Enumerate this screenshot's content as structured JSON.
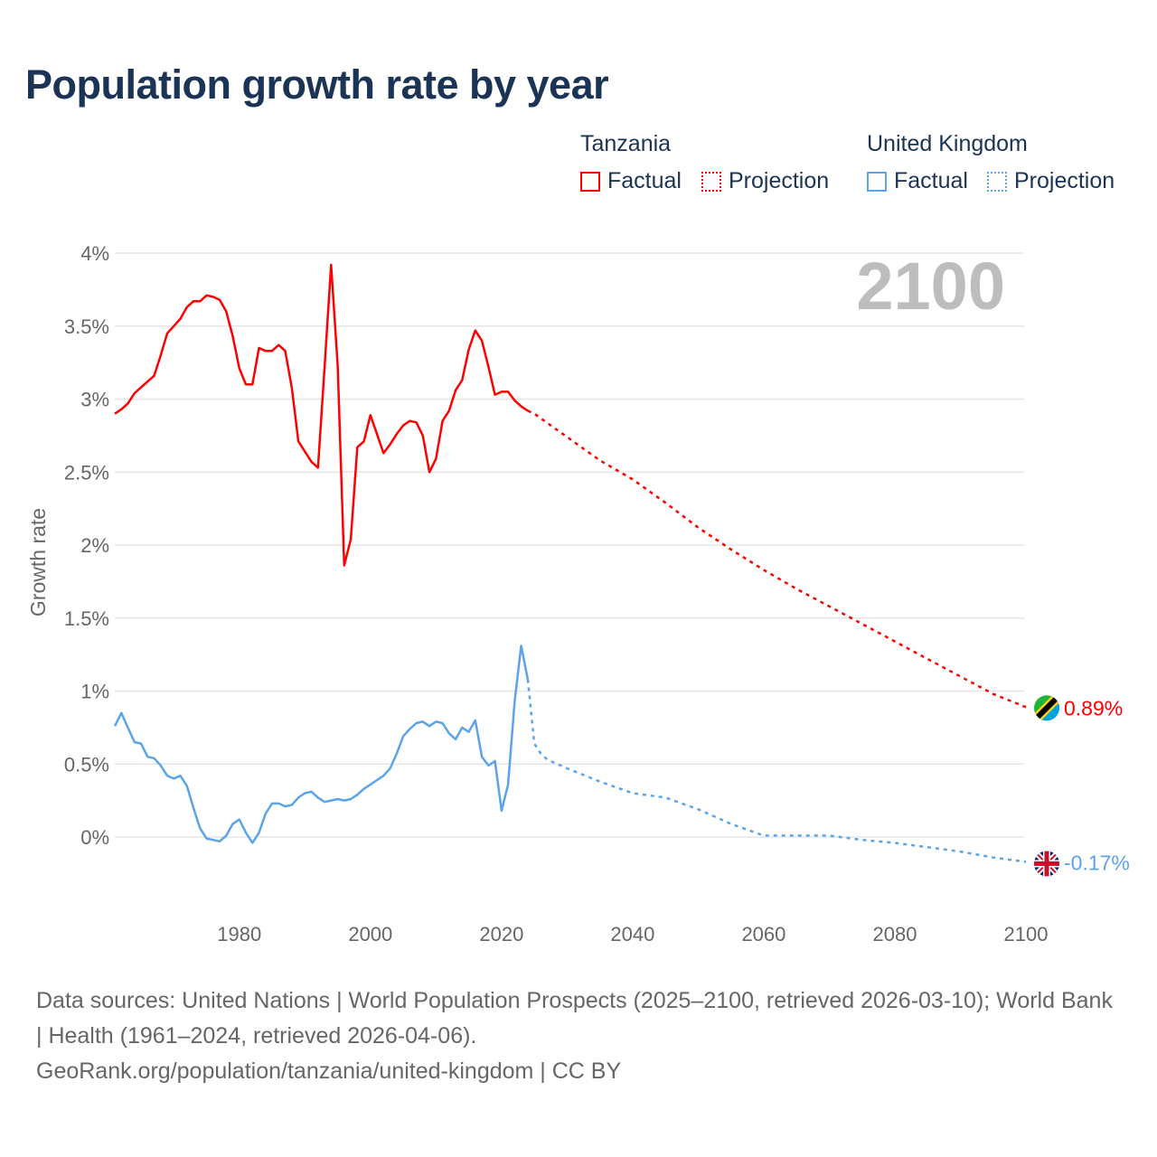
{
  "title": "Population growth rate by year",
  "legend": {
    "groups": [
      {
        "name": "Tanzania",
        "factual": "Factual",
        "projection": "Projection",
        "color": "#ff0000"
      },
      {
        "name": "United Kingdom",
        "factual": "Factual",
        "projection": "Projection",
        "color": "#5ba4e8"
      }
    ]
  },
  "year_watermark": "2100",
  "footer": {
    "sources": "Data sources: United Nations | World Population Prospects (2025–2100, retrieved 2026-03-10); World Bank | Health (1961–2024, retrieved 2026-04-06).",
    "link": "GeoRank.org/population/tanzania/united-kingdom | CC BY"
  },
  "chart_data": {
    "type": "line",
    "title": "Population growth rate by year",
    "xlabel": "",
    "ylabel": "Growth rate",
    "xlim": [
      1961,
      2100
    ],
    "ylim": [
      -0.3,
      4.0
    ],
    "x_ticks": [
      1980,
      2000,
      2020,
      2040,
      2060,
      2080,
      2100
    ],
    "x_tick_labels": [
      "1980",
      "2000",
      "2020",
      "2040",
      "2060",
      "2080",
      "2100"
    ],
    "y_ticks": [
      0,
      0.5,
      1,
      1.5,
      2,
      2.5,
      3,
      3.5,
      4
    ],
    "y_tick_labels": [
      "0%",
      "0.5%",
      "1%",
      "1.5%",
      "2%",
      "2.5%",
      "3%",
      "3.5%",
      "4%"
    ],
    "grid": true,
    "legend_position": "top-right",
    "series": [
      {
        "name": "Tanzania Factual",
        "color": "#ff0000",
        "dashed": false,
        "x": [
          1961,
          1962,
          1963,
          1964,
          1965,
          1966,
          1967,
          1968,
          1969,
          1970,
          1971,
          1972,
          1973,
          1974,
          1975,
          1976,
          1977,
          1978,
          1979,
          1980,
          1981,
          1982,
          1983,
          1984,
          1985,
          1986,
          1987,
          1988,
          1989,
          1990,
          1991,
          1992,
          1993,
          1994,
          1995,
          1996,
          1997,
          1998,
          1999,
          2000,
          2001,
          2002,
          2003,
          2004,
          2005,
          2006,
          2007,
          2008,
          2009,
          2010,
          2011,
          2012,
          2013,
          2014,
          2015,
          2016,
          2017,
          2018,
          2019,
          2020,
          2021,
          2022,
          2023,
          2024
        ],
        "values": [
          2.9,
          2.93,
          2.97,
          3.04,
          3.08,
          3.12,
          3.16,
          3.3,
          3.45,
          3.5,
          3.55,
          3.63,
          3.67,
          3.67,
          3.71,
          3.7,
          3.68,
          3.6,
          3.43,
          3.21,
          3.1,
          3.1,
          3.35,
          3.33,
          3.33,
          3.37,
          3.33,
          3.08,
          2.71,
          2.64,
          2.57,
          2.53,
          3.22,
          3.92,
          3.23,
          1.86,
          2.04,
          2.67,
          2.71,
          2.89,
          2.76,
          2.63,
          2.69,
          2.76,
          2.82,
          2.85,
          2.84,
          2.75,
          2.5,
          2.59,
          2.85,
          2.92,
          3.06,
          3.13,
          3.34,
          3.47,
          3.4,
          3.22,
          3.03,
          3.05,
          3.05,
          2.99,
          2.95,
          2.92
        ]
      },
      {
        "name": "Tanzania Projection",
        "color": "#ff0000",
        "dashed": true,
        "x": [
          2024,
          2025,
          2030,
          2035,
          2040,
          2045,
          2050,
          2055,
          2060,
          2065,
          2070,
          2075,
          2080,
          2085,
          2090,
          2095,
          2100
        ],
        "values": [
          2.92,
          2.9,
          2.74,
          2.58,
          2.45,
          2.29,
          2.12,
          1.97,
          1.83,
          1.7,
          1.58,
          1.46,
          1.34,
          1.22,
          1.1,
          0.98,
          0.89
        ]
      },
      {
        "name": "United Kingdom Factual",
        "color": "#5ba4e8",
        "dashed": false,
        "x": [
          1961,
          1962,
          1963,
          1964,
          1965,
          1966,
          1967,
          1968,
          1969,
          1970,
          1971,
          1972,
          1973,
          1974,
          1975,
          1976,
          1977,
          1978,
          1979,
          1980,
          1981,
          1982,
          1983,
          1984,
          1985,
          1986,
          1987,
          1988,
          1989,
          1990,
          1991,
          1992,
          1993,
          1994,
          1995,
          1996,
          1997,
          1998,
          1999,
          2000,
          2001,
          2002,
          2003,
          2004,
          2005,
          2006,
          2007,
          2008,
          2009,
          2010,
          2011,
          2012,
          2013,
          2014,
          2015,
          2016,
          2017,
          2018,
          2019,
          2020,
          2021,
          2022,
          2023,
          2024
        ],
        "values": [
          0.76,
          0.85,
          0.75,
          0.65,
          0.64,
          0.55,
          0.54,
          0.49,
          0.42,
          0.4,
          0.42,
          0.35,
          0.2,
          0.06,
          -0.01,
          -0.02,
          -0.03,
          0.01,
          0.09,
          0.12,
          0.03,
          -0.04,
          0.03,
          0.16,
          0.23,
          0.23,
          0.21,
          0.22,
          0.27,
          0.3,
          0.31,
          0.27,
          0.24,
          0.25,
          0.26,
          0.25,
          0.26,
          0.29,
          0.33,
          0.36,
          0.39,
          0.42,
          0.47,
          0.57,
          0.69,
          0.74,
          0.78,
          0.79,
          0.76,
          0.79,
          0.78,
          0.71,
          0.67,
          0.75,
          0.72,
          0.8,
          0.55,
          0.49,
          0.52,
          0.18,
          0.36,
          0.93,
          1.31,
          1.08
        ]
      },
      {
        "name": "United Kingdom Projection",
        "color": "#5ba4e8",
        "dashed": true,
        "x": [
          2024,
          2025,
          2026,
          2027,
          2030,
          2035,
          2040,
          2045,
          2050,
          2055,
          2060,
          2065,
          2070,
          2075,
          2080,
          2085,
          2090,
          2095,
          2100
        ],
        "values": [
          1.08,
          0.64,
          0.57,
          0.53,
          0.47,
          0.38,
          0.3,
          0.27,
          0.19,
          0.09,
          0.01,
          0.01,
          0.01,
          -0.02,
          -0.04,
          -0.07,
          -0.1,
          -0.14,
          -0.17
        ]
      }
    ],
    "end_labels": [
      {
        "country": "Tanzania",
        "text": "0.89%",
        "value": 0.89,
        "color": "#ff0000"
      },
      {
        "country": "United Kingdom",
        "text": "-0.17%",
        "value": -0.17,
        "color": "#5ba4e8"
      }
    ]
  }
}
